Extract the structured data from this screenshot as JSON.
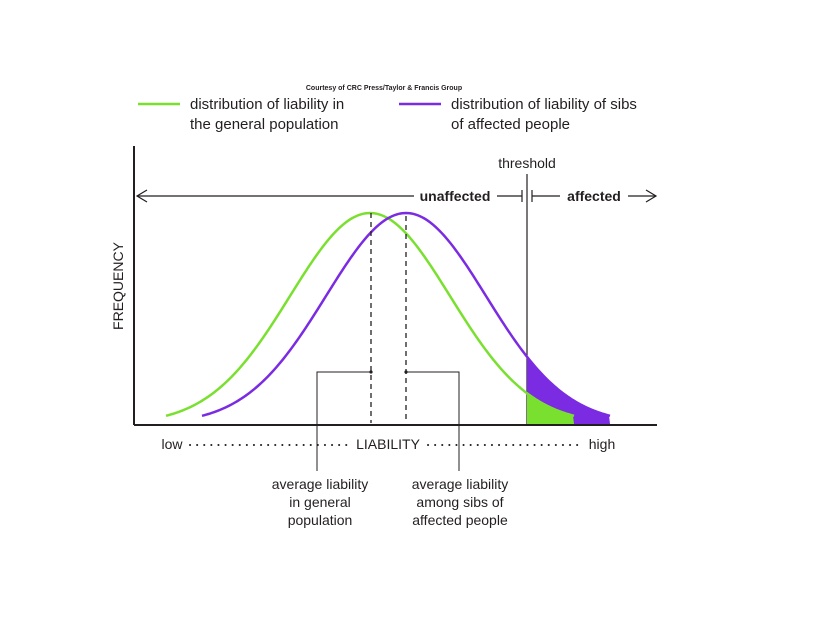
{
  "credit": "Courtesy of CRC Press/Taylor & Francis Group",
  "legend": {
    "general": {
      "line1": "distribution of liability in",
      "line2": "the general population",
      "color": "#7ae030"
    },
    "sibs": {
      "line1": "distribution of liability of sibs",
      "line2": "of affected people",
      "color": "#7b2be2"
    }
  },
  "threshold_label": "threshold",
  "unaffected_label": "unaffected",
  "affected_label": "affected",
  "y_axis_label": "FREQUENCY",
  "x_axis": {
    "low": "low",
    "center": "LIABILITY",
    "high": "high"
  },
  "annotations": {
    "general_mean": [
      "average liability",
      "in general",
      "population"
    ],
    "sibs_mean": [
      "average liability",
      "among sibs of",
      "affected people"
    ]
  },
  "colors": {
    "axis": "#231f20",
    "general": "#7ae030",
    "sibs": "#7b2be2"
  }
}
